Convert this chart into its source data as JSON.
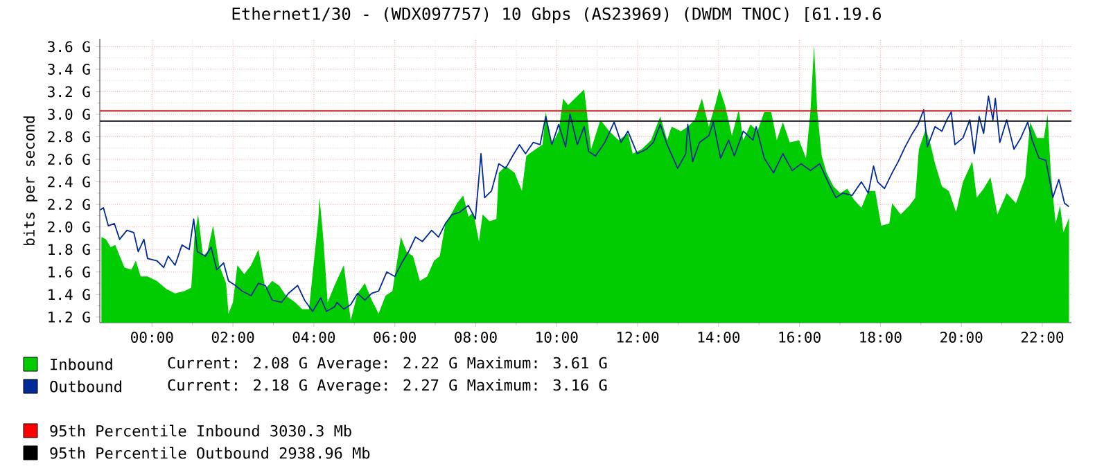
{
  "chart_data": {
    "type": "area",
    "title": "Ethernet1/30 - (WDX097757) 10 Gbps (AS23969) (DWDM TNOC) [61.19.6",
    "ylabel": "bits per second",
    "xlim": [
      -1.29,
      22.72
    ],
    "ylim": [
      1.15,
      3.67
    ],
    "xticks": [
      {
        "value": 0,
        "label": "00:00"
      },
      {
        "value": 2,
        "label": "02:00"
      },
      {
        "value": 4,
        "label": "04:00"
      },
      {
        "value": 6,
        "label": "06:00"
      },
      {
        "value": 8,
        "label": "08:00"
      },
      {
        "value": 10,
        "label": "10:00"
      },
      {
        "value": 12,
        "label": "12:00"
      },
      {
        "value": 14,
        "label": "14:00"
      },
      {
        "value": 16,
        "label": "16:00"
      },
      {
        "value": 18,
        "label": "18:00"
      },
      {
        "value": 20,
        "label": "20:00"
      },
      {
        "value": 22,
        "label": "22:00"
      }
    ],
    "yticks": [
      {
        "value": 1.2,
        "label": "1.2 G"
      },
      {
        "value": 1.4,
        "label": "1.4 G"
      },
      {
        "value": 1.6,
        "label": "1.6 G"
      },
      {
        "value": 1.8,
        "label": "1.8 G"
      },
      {
        "value": 2.0,
        "label": "2.0 G"
      },
      {
        "value": 2.2,
        "label": "2.2 G"
      },
      {
        "value": 2.4,
        "label": "2.4 G"
      },
      {
        "value": 2.6,
        "label": "2.6 G"
      },
      {
        "value": 2.8,
        "label": "2.8 G"
      },
      {
        "value": 3.0,
        "label": "3.0 G"
      },
      {
        "value": 3.2,
        "label": "3.2 G"
      },
      {
        "value": 3.4,
        "label": "3.4 G"
      },
      {
        "value": 3.6,
        "label": "3.6 G"
      }
    ],
    "grid": true,
    "legend": "bottom",
    "series": [
      {
        "name": "Inbound",
        "color": "#00cc00",
        "x": [
          -1.25,
          -1.14,
          -1.02,
          -0.91,
          -0.68,
          -0.51,
          -0.4,
          -0.28,
          -0.11,
          0.12,
          0.35,
          0.57,
          0.8,
          0.97,
          1.05,
          1.14,
          1.26,
          1.37,
          1.51,
          1.66,
          1.83,
          1.89,
          2.0,
          2.11,
          2.28,
          2.45,
          2.63,
          2.8,
          2.97,
          3.14,
          3.31,
          3.54,
          3.71,
          3.88,
          4.11,
          4.14,
          4.23,
          4.34,
          4.51,
          4.74,
          4.91,
          5.08,
          5.26,
          5.43,
          5.6,
          5.77,
          5.94,
          6.15,
          6.29,
          6.45,
          6.62,
          6.8,
          6.97,
          7.11,
          7.25,
          7.42,
          7.54,
          7.69,
          7.82,
          7.94,
          8.08,
          8.17,
          8.34,
          8.51,
          8.57,
          8.74,
          8.96,
          9.14,
          9.25,
          9.48,
          9.65,
          9.73,
          9.88,
          10.05,
          10.16,
          10.28,
          10.45,
          10.62,
          10.68,
          10.85,
          11.08,
          11.3,
          11.53,
          11.76,
          11.88,
          12.1,
          12.33,
          12.56,
          12.73,
          12.84,
          13.07,
          13.24,
          13.41,
          13.59,
          13.76,
          13.93,
          14.02,
          14.16,
          14.33,
          14.5,
          14.61,
          14.79,
          14.96,
          15.13,
          15.3,
          15.44,
          15.59,
          15.76,
          15.99,
          16.16,
          16.27,
          16.36,
          16.44,
          16.55,
          16.67,
          16.84,
          17.01,
          17.18,
          17.35,
          17.53,
          17.7,
          17.87,
          18.02,
          18.22,
          18.29,
          18.5,
          18.72,
          18.86,
          18.95,
          19.12,
          19.24,
          19.35,
          19.52,
          19.69,
          19.87,
          20.04,
          20.27,
          20.38,
          20.55,
          20.72,
          20.89,
          21.12,
          21.35,
          21.58,
          21.7,
          21.87,
          22.04,
          22.13,
          22.21,
          22.33,
          22.44,
          22.52,
          22.66
        ],
        "values": [
          1.91,
          1.89,
          1.82,
          1.84,
          1.64,
          1.62,
          1.7,
          1.56,
          1.56,
          1.52,
          1.45,
          1.41,
          1.43,
          1.46,
          1.91,
          2.11,
          1.74,
          1.78,
          2.01,
          1.66,
          1.5,
          1.23,
          1.33,
          1.66,
          1.58,
          1.66,
          1.8,
          1.45,
          1.52,
          1.48,
          1.39,
          1.33,
          1.27,
          1.27,
          2.07,
          2.26,
          1.91,
          1.33,
          1.48,
          1.66,
          1.17,
          1.41,
          1.5,
          1.35,
          1.23,
          1.39,
          1.43,
          1.91,
          1.78,
          1.74,
          1.52,
          1.56,
          1.7,
          1.74,
          2.03,
          2.13,
          2.21,
          2.28,
          2.09,
          2.13,
          1.87,
          2.11,
          2.05,
          2.07,
          2.48,
          2.54,
          2.48,
          2.32,
          2.63,
          2.69,
          2.73,
          3.02,
          2.73,
          2.85,
          3.14,
          3.08,
          3.14,
          3.2,
          3.22,
          2.69,
          2.95,
          2.85,
          2.77,
          2.83,
          2.65,
          2.69,
          2.77,
          2.98,
          2.77,
          2.89,
          2.85,
          2.89,
          2.95,
          3.14,
          2.89,
          3.1,
          3.23,
          3.08,
          2.81,
          3.04,
          2.77,
          2.91,
          2.85,
          3.02,
          3.02,
          2.77,
          2.93,
          2.75,
          2.77,
          2.61,
          3.02,
          3.61,
          3.02,
          2.63,
          2.48,
          2.36,
          2.3,
          2.34,
          2.24,
          2.17,
          2.32,
          2.32,
          2.01,
          2.03,
          2.21,
          2.11,
          2.19,
          2.26,
          2.69,
          2.87,
          2.73,
          2.56,
          2.36,
          2.32,
          2.13,
          2.4,
          2.58,
          2.26,
          2.34,
          2.44,
          2.11,
          2.3,
          2.21,
          2.44,
          2.93,
          2.79,
          2.79,
          3.0,
          2.48,
          2.03,
          2.19,
          1.95,
          2.08
        ]
      },
      {
        "name": "Outbound",
        "type": "line",
        "color": "#002a97",
        "x": [
          -1.28,
          -1.2,
          -1.08,
          -0.93,
          -0.8,
          -0.62,
          -0.45,
          -0.34,
          -0.2,
          -0.11,
          0.12,
          0.29,
          0.4,
          0.57,
          0.74,
          0.92,
          1.03,
          1.12,
          1.32,
          1.46,
          1.6,
          1.77,
          1.89,
          2.06,
          2.23,
          2.45,
          2.63,
          2.8,
          2.97,
          3.2,
          3.37,
          3.6,
          3.77,
          3.97,
          4.17,
          4.31,
          4.51,
          4.57,
          4.74,
          4.91,
          5.08,
          5.26,
          5.43,
          5.6,
          5.8,
          6.0,
          6.17,
          6.34,
          6.51,
          6.68,
          6.91,
          7.08,
          7.25,
          7.42,
          7.6,
          7.82,
          7.99,
          8.13,
          8.22,
          8.39,
          8.57,
          8.74,
          8.91,
          9.08,
          9.23,
          9.42,
          9.59,
          9.73,
          9.88,
          10.05,
          10.22,
          10.33,
          10.51,
          10.68,
          10.79,
          10.96,
          11.19,
          11.42,
          11.59,
          11.76,
          11.99,
          12.22,
          12.39,
          12.56,
          12.73,
          12.99,
          13.19,
          13.24,
          13.36,
          13.53,
          13.76,
          13.87,
          14.05,
          14.25,
          14.39,
          14.61,
          14.85,
          14.93,
          15.13,
          15.36,
          15.59,
          15.82,
          16.04,
          16.27,
          16.5,
          16.73,
          16.9,
          17.07,
          17.3,
          17.53,
          17.7,
          17.83,
          17.93,
          18.1,
          18.29,
          18.44,
          18.61,
          18.79,
          18.93,
          19.07,
          19.16,
          19.35,
          19.52,
          19.64,
          19.75,
          19.84,
          20.04,
          20.21,
          20.32,
          20.44,
          20.55,
          20.67,
          20.78,
          20.84,
          20.95,
          21.12,
          21.3,
          21.47,
          21.64,
          21.75,
          21.92,
          22.09,
          22.26,
          22.41,
          22.55,
          22.66
        ],
        "values": [
          2.15,
          2.17,
          2.01,
          2.03,
          1.89,
          1.97,
          1.95,
          1.78,
          1.89,
          1.72,
          1.7,
          1.64,
          1.74,
          1.66,
          1.84,
          1.8,
          2.07,
          1.78,
          1.74,
          1.82,
          1.62,
          1.68,
          1.52,
          1.48,
          1.43,
          1.39,
          1.5,
          1.48,
          1.35,
          1.33,
          1.41,
          1.48,
          1.35,
          1.25,
          1.37,
          1.25,
          1.29,
          1.33,
          1.27,
          1.31,
          1.41,
          1.35,
          1.41,
          1.43,
          1.6,
          1.56,
          1.68,
          1.78,
          1.91,
          1.87,
          1.97,
          1.91,
          2.03,
          2.11,
          2.13,
          2.19,
          2.07,
          2.65,
          2.26,
          2.32,
          2.56,
          2.52,
          2.63,
          2.73,
          2.65,
          2.75,
          2.73,
          2.98,
          2.73,
          2.91,
          2.71,
          3.0,
          2.73,
          2.89,
          2.67,
          2.63,
          2.75,
          2.93,
          2.75,
          2.85,
          2.65,
          2.69,
          2.75,
          2.91,
          2.73,
          2.52,
          2.65,
          2.91,
          2.58,
          2.75,
          2.81,
          2.93,
          2.61,
          2.77,
          2.63,
          2.85,
          2.77,
          2.89,
          2.61,
          2.48,
          2.65,
          2.5,
          2.56,
          2.5,
          2.56,
          2.38,
          2.26,
          2.3,
          2.28,
          2.4,
          2.3,
          2.54,
          2.4,
          2.34,
          2.48,
          2.58,
          2.71,
          2.83,
          2.91,
          3.04,
          2.71,
          2.89,
          2.85,
          2.95,
          3.02,
          2.73,
          2.79,
          2.95,
          2.65,
          2.98,
          2.83,
          3.16,
          2.95,
          3.14,
          2.75,
          2.95,
          2.69,
          2.79,
          2.93,
          2.77,
          2.61,
          2.59,
          2.26,
          2.42,
          2.21,
          2.18
        ]
      }
    ],
    "ref_lines": [
      {
        "axis": "y",
        "value": 3.0303,
        "label": "95th Percentile Inbound  3030.3 Mb",
        "color": "#ff0000"
      },
      {
        "axis": "y",
        "value": 2.93896,
        "label": "95th Percentile Outbound  2938.96 Mb",
        "color": "#000000"
      }
    ],
    "annotations": [
      "Current: 2.08 G   Average: 2.22 G   Maximum: 3.61 G",
      "Current: 2.18 G   Average: 2.27 G   Maximum: 3.16 G"
    ]
  }
}
